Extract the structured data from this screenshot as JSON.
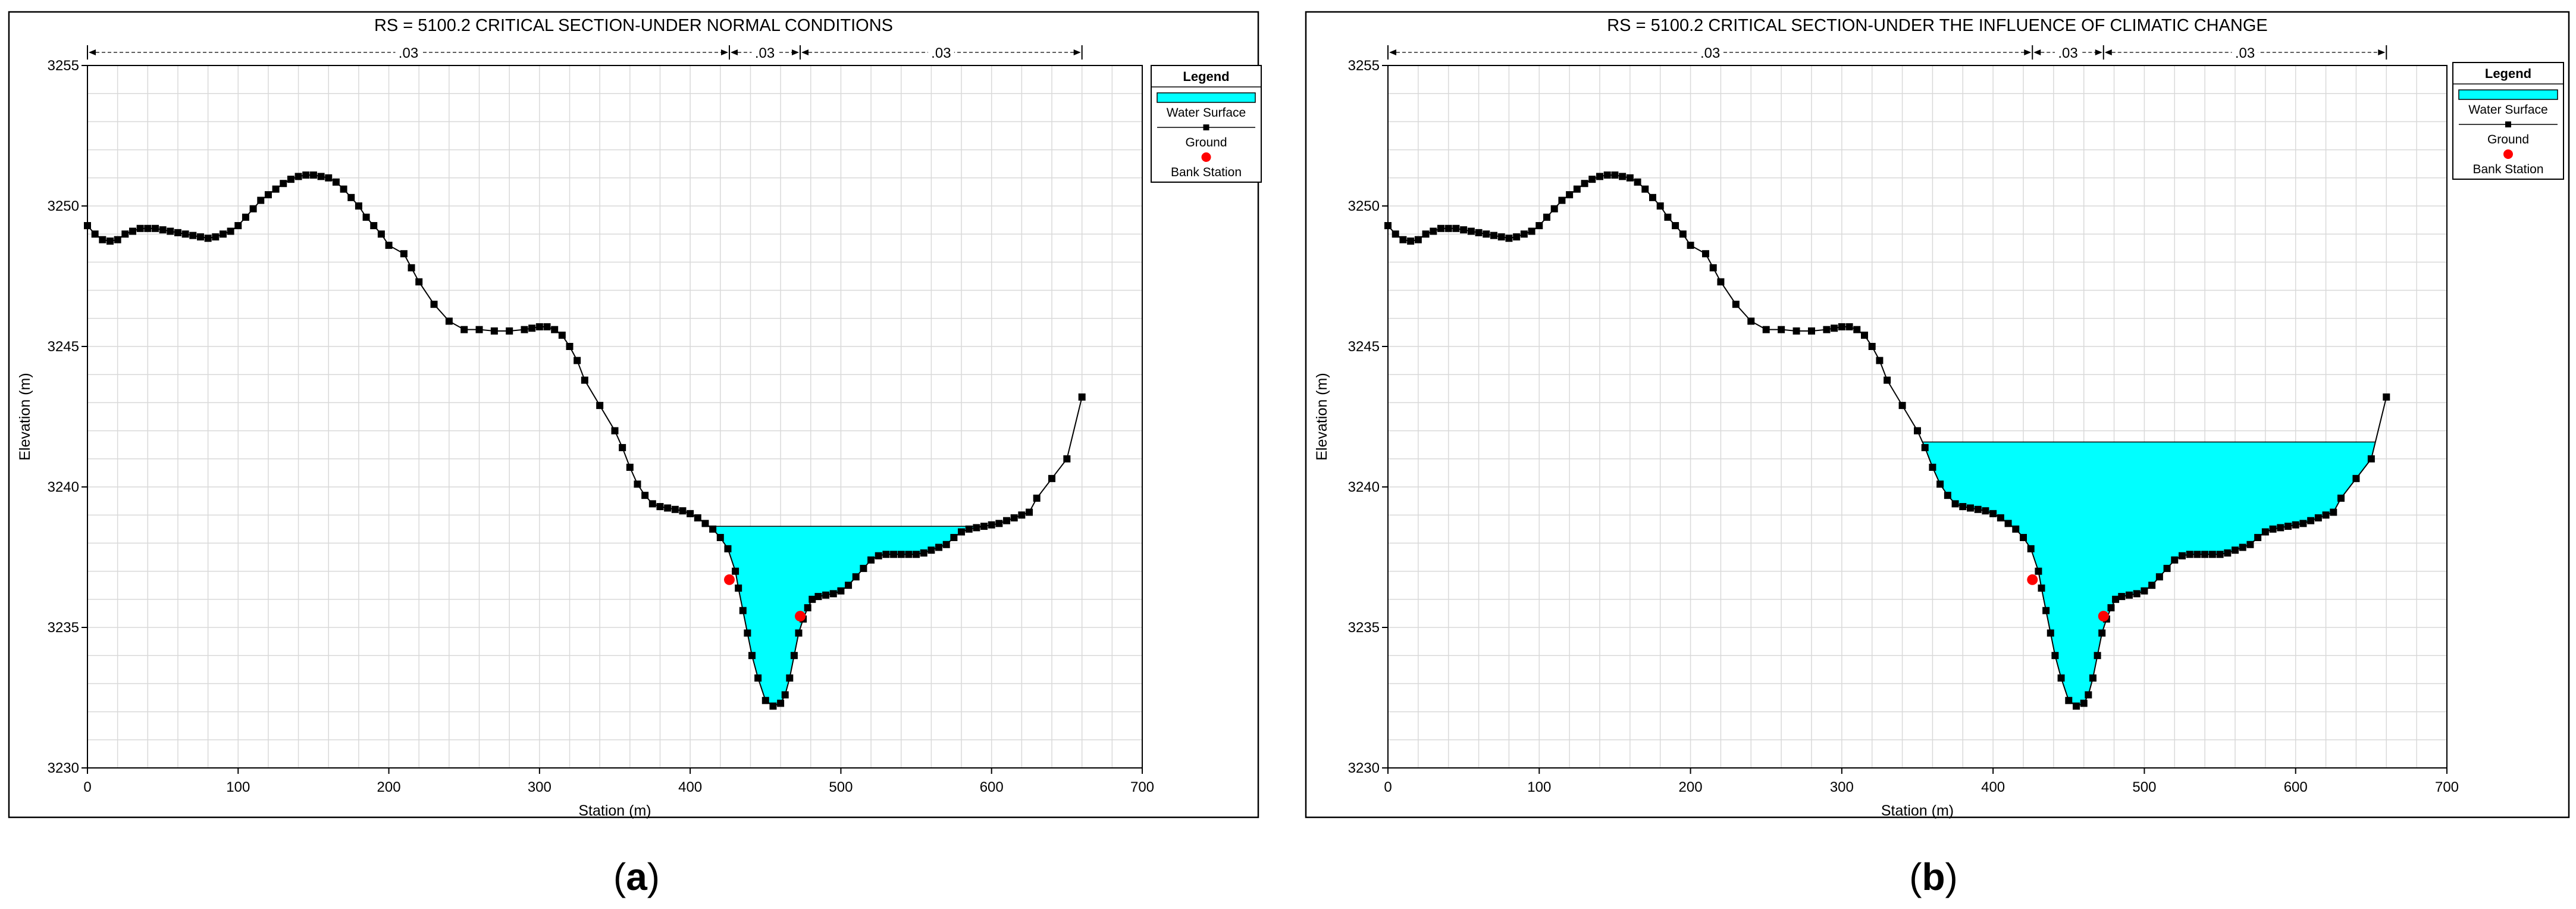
{
  "figure": {
    "panel_labels": [
      "(a)",
      "(b)"
    ]
  },
  "legend": {
    "title": "Legend",
    "items": [
      "Water Surface",
      "Ground",
      "Bank Station"
    ]
  },
  "colors": {
    "water": "#00ffff",
    "ground": "#000000",
    "bank": "#ff0000",
    "grid": "#d9d9d9"
  },
  "chart_data": [
    {
      "type": "area",
      "title": "RS = 5100.2     CRITICAL SECTION-UNDER NORMAL CONDITIONS",
      "xlabel": "Station (m)",
      "ylabel": "Elevation (m)",
      "xlim": [
        0,
        700
      ],
      "ylim": [
        3230,
        3255
      ],
      "xticks": [
        0,
        100,
        200,
        300,
        400,
        500,
        600,
        700
      ],
      "yticks": [
        3230,
        3235,
        3240,
        3245,
        3250,
        3255
      ],
      "grid": true,
      "legend_position": "right",
      "manning": {
        "breaks": [
          0,
          426,
          473,
          660
        ],
        "labels": [
          ".03",
          ".03",
          ".03"
        ]
      },
      "water_surface": 3238.6,
      "bank_stations": [
        {
          "x": 426,
          "y": 3236.7
        },
        {
          "x": 473,
          "y": 3235.4
        }
      ],
      "ground": {
        "x": [
          0,
          5,
          10,
          15,
          20,
          25,
          30,
          35,
          40,
          45,
          50,
          55,
          60,
          65,
          70,
          75,
          80,
          85,
          90,
          95,
          100,
          105,
          110,
          115,
          120,
          125,
          130,
          135,
          140,
          145,
          150,
          155,
          160,
          165,
          170,
          175,
          180,
          185,
          190,
          195,
          200,
          210,
          215,
          220,
          230,
          240,
          250,
          260,
          270,
          280,
          290,
          295,
          300,
          305,
          310,
          315,
          320,
          325,
          330,
          340,
          350,
          355,
          360,
          365,
          370,
          375,
          380,
          385,
          390,
          395,
          400,
          405,
          410,
          415,
          420,
          425,
          430,
          432,
          435,
          438,
          441,
          445,
          450,
          455,
          460,
          463,
          466,
          469,
          472,
          475,
          478,
          481,
          485,
          490,
          495,
          500,
          505,
          510,
          515,
          520,
          525,
          530,
          535,
          540,
          545,
          550,
          555,
          560,
          565,
          570,
          575,
          580,
          585,
          590,
          595,
          600,
          605,
          610,
          615,
          620,
          625,
          630,
          640,
          650,
          660
        ],
        "y": [
          3249.3,
          3249.0,
          3248.8,
          3248.75,
          3248.8,
          3249.0,
          3249.1,
          3249.2,
          3249.2,
          3249.2,
          3249.15,
          3249.1,
          3249.05,
          3249.0,
          3248.95,
          3248.9,
          3248.85,
          3248.9,
          3249.0,
          3249.1,
          3249.3,
          3249.6,
          3249.9,
          3250.2,
          3250.4,
          3250.6,
          3250.8,
          3250.95,
          3251.05,
          3251.1,
          3251.1,
          3251.05,
          3251.0,
          3250.85,
          3250.6,
          3250.3,
          3250.0,
          3249.6,
          3249.3,
          3249.0,
          3248.6,
          3248.3,
          3247.8,
          3247.3,
          3246.5,
          3245.9,
          3245.6,
          3245.6,
          3245.55,
          3245.55,
          3245.6,
          3245.65,
          3245.7,
          3245.7,
          3245.6,
          3245.4,
          3245.0,
          3244.5,
          3243.8,
          3242.9,
          3242.0,
          3241.4,
          3240.7,
          3240.1,
          3239.7,
          3239.4,
          3239.3,
          3239.25,
          3239.2,
          3239.15,
          3239.05,
          3238.9,
          3238.7,
          3238.5,
          3238.2,
          3237.8,
          3237.0,
          3236.4,
          3235.6,
          3234.8,
          3234.0,
          3233.2,
          3232.4,
          3232.2,
          3232.3,
          3232.6,
          3233.2,
          3234.0,
          3234.8,
          3235.3,
          3235.7,
          3236.0,
          3236.1,
          3236.15,
          3236.2,
          3236.3,
          3236.5,
          3236.8,
          3237.1,
          3237.4,
          3237.55,
          3237.6,
          3237.6,
          3237.6,
          3237.6,
          3237.6,
          3237.65,
          3237.75,
          3237.85,
          3237.95,
          3238.2,
          3238.4,
          3238.5,
          3238.55,
          3238.6,
          3238.65,
          3238.7,
          3238.8,
          3238.9,
          3239.0,
          3239.1,
          3239.6,
          3240.3,
          3241.0,
          3243.2
        ]
      }
    },
    {
      "type": "area",
      "title": "RS = 5100.2     CRITICAL SECTION-UNDER THE INFLUENCE OF CLIMATIC CHANGE",
      "xlabel": "Station (m)",
      "ylabel": "Elevation (m)",
      "xlim": [
        0,
        700
      ],
      "ylim": [
        3230,
        3255
      ],
      "xticks": [
        0,
        100,
        200,
        300,
        400,
        500,
        600,
        700
      ],
      "yticks": [
        3230,
        3235,
        3240,
        3245,
        3250,
        3255
      ],
      "grid": true,
      "legend_position": "right",
      "manning": {
        "breaks": [
          0,
          426,
          473,
          660
        ],
        "labels": [
          ".03",
          ".03",
          ".03"
        ]
      },
      "water_surface": 3241.6,
      "bank_stations": [
        {
          "x": 426,
          "y": 3236.7
        },
        {
          "x": 473,
          "y": 3235.4
        }
      ],
      "ground": {
        "x": [
          0,
          5,
          10,
          15,
          20,
          25,
          30,
          35,
          40,
          45,
          50,
          55,
          60,
          65,
          70,
          75,
          80,
          85,
          90,
          95,
          100,
          105,
          110,
          115,
          120,
          125,
          130,
          135,
          140,
          145,
          150,
          155,
          160,
          165,
          170,
          175,
          180,
          185,
          190,
          195,
          200,
          210,
          215,
          220,
          230,
          240,
          250,
          260,
          270,
          280,
          290,
          295,
          300,
          305,
          310,
          315,
          320,
          325,
          330,
          340,
          350,
          355,
          360,
          365,
          370,
          375,
          380,
          385,
          390,
          395,
          400,
          405,
          410,
          415,
          420,
          425,
          430,
          432,
          435,
          438,
          441,
          445,
          450,
          455,
          460,
          463,
          466,
          469,
          472,
          475,
          478,
          481,
          485,
          490,
          495,
          500,
          505,
          510,
          515,
          520,
          525,
          530,
          535,
          540,
          545,
          550,
          555,
          560,
          565,
          570,
          575,
          580,
          585,
          590,
          595,
          600,
          605,
          610,
          615,
          620,
          625,
          630,
          640,
          650,
          660
        ],
        "y": [
          3249.3,
          3249.0,
          3248.8,
          3248.75,
          3248.8,
          3249.0,
          3249.1,
          3249.2,
          3249.2,
          3249.2,
          3249.15,
          3249.1,
          3249.05,
          3249.0,
          3248.95,
          3248.9,
          3248.85,
          3248.9,
          3249.0,
          3249.1,
          3249.3,
          3249.6,
          3249.9,
          3250.2,
          3250.4,
          3250.6,
          3250.8,
          3250.95,
          3251.05,
          3251.1,
          3251.1,
          3251.05,
          3251.0,
          3250.85,
          3250.6,
          3250.3,
          3250.0,
          3249.6,
          3249.3,
          3249.0,
          3248.6,
          3248.3,
          3247.8,
          3247.3,
          3246.5,
          3245.9,
          3245.6,
          3245.6,
          3245.55,
          3245.55,
          3245.6,
          3245.65,
          3245.7,
          3245.7,
          3245.6,
          3245.4,
          3245.0,
          3244.5,
          3243.8,
          3242.9,
          3242.0,
          3241.4,
          3240.7,
          3240.1,
          3239.7,
          3239.4,
          3239.3,
          3239.25,
          3239.2,
          3239.15,
          3239.05,
          3238.9,
          3238.7,
          3238.5,
          3238.2,
          3237.8,
          3237.0,
          3236.4,
          3235.6,
          3234.8,
          3234.0,
          3233.2,
          3232.4,
          3232.2,
          3232.3,
          3232.6,
          3233.2,
          3234.0,
          3234.8,
          3235.3,
          3235.7,
          3236.0,
          3236.1,
          3236.15,
          3236.2,
          3236.3,
          3236.5,
          3236.8,
          3237.1,
          3237.4,
          3237.55,
          3237.6,
          3237.6,
          3237.6,
          3237.6,
          3237.6,
          3237.65,
          3237.75,
          3237.85,
          3237.95,
          3238.2,
          3238.4,
          3238.5,
          3238.55,
          3238.6,
          3238.65,
          3238.7,
          3238.8,
          3238.9,
          3239.0,
          3239.1,
          3239.6,
          3240.3,
          3241.0,
          3243.2
        ]
      }
    }
  ]
}
